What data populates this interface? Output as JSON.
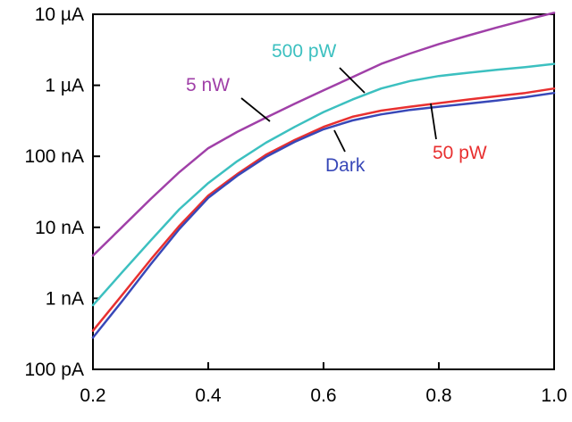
{
  "chart_data": {
    "type": "line",
    "title": "",
    "xlabel": "",
    "ylabel": "",
    "xlim": [
      0.2,
      1.0
    ],
    "ylim": [
      1e-10,
      1e-05
    ],
    "yscale": "log",
    "grid": false,
    "legend": "labels on curves",
    "x_ticks": [
      {
        "value": 0.2,
        "label": "0.2"
      },
      {
        "value": 0.4,
        "label": "0.4"
      },
      {
        "value": 0.6,
        "label": "0.6"
      },
      {
        "value": 0.8,
        "label": "0.8"
      },
      {
        "value": 1.0,
        "label": "1.0"
      }
    ],
    "y_ticks": [
      {
        "value": 1e-05,
        "label": "10 µA"
      },
      {
        "value": 1e-06,
        "label": "1 µA"
      },
      {
        "value": 1e-07,
        "label": "100 nA"
      },
      {
        "value": 1e-08,
        "label": "10 nA"
      },
      {
        "value": 1e-09,
        "label": "1 nA"
      },
      {
        "value": 1e-10,
        "label": "100 pA"
      }
    ],
    "series": [
      {
        "name": "5 nW",
        "color": "#a040a8",
        "x": [
          0.2,
          0.25,
          0.3,
          0.35,
          0.4,
          0.45,
          0.5,
          0.55,
          0.6,
          0.65,
          0.7,
          0.75,
          0.8,
          0.85,
          0.9,
          0.95,
          1.0
        ],
        "y": [
          4e-09,
          1e-08,
          2.5e-08,
          6e-08,
          1.3e-07,
          2.2e-07,
          3.5e-07,
          5.5e-07,
          8.5e-07,
          1.3e-06,
          2e-06,
          2.8e-06,
          3.8e-06,
          5e-06,
          6.5e-06,
          8.3e-06,
          1.05e-05
        ]
      },
      {
        "name": "500 pW",
        "color": "#3cc0c0",
        "x": [
          0.2,
          0.25,
          0.3,
          0.35,
          0.4,
          0.45,
          0.5,
          0.55,
          0.6,
          0.65,
          0.7,
          0.75,
          0.8,
          0.85,
          0.9,
          0.95,
          1.0
        ],
        "y": [
          8e-10,
          2.3e-09,
          6.5e-09,
          1.8e-08,
          4.2e-08,
          8.5e-08,
          1.55e-07,
          2.6e-07,
          4.2e-07,
          6.3e-07,
          9e-07,
          1.15e-06,
          1.35e-06,
          1.5e-06,
          1.65e-06,
          1.8e-06,
          2e-06
        ]
      },
      {
        "name": "50 pW",
        "color": "#e83030",
        "x": [
          0.2,
          0.25,
          0.3,
          0.35,
          0.4,
          0.45,
          0.5,
          0.55,
          0.6,
          0.65,
          0.7,
          0.75,
          0.8,
          0.85,
          0.9,
          0.95,
          1.0
        ],
        "y": [
          3.5e-10,
          1.1e-09,
          3.5e-09,
          1.05e-08,
          2.8e-08,
          5.6e-08,
          1.05e-07,
          1.7e-07,
          2.6e-07,
          3.6e-07,
          4.4e-07,
          5e-07,
          5.6e-07,
          6.3e-07,
          7e-07,
          7.8e-07,
          9e-07
        ]
      },
      {
        "name": "Dark",
        "color": "#3848b8",
        "x": [
          0.2,
          0.25,
          0.3,
          0.35,
          0.4,
          0.45,
          0.5,
          0.55,
          0.6,
          0.65,
          0.7,
          0.75,
          0.8,
          0.85,
          0.9,
          0.95,
          1.0
        ],
        "y": [
          2.8e-10,
          9e-10,
          3e-09,
          9.5e-09,
          2.6e-08,
          5.3e-08,
          9.8e-08,
          1.6e-07,
          2.4e-07,
          3.2e-07,
          3.9e-07,
          4.5e-07,
          5e-07,
          5.5e-07,
          6.1e-07,
          6.8e-07,
          7.8e-07
        ]
      }
    ]
  }
}
